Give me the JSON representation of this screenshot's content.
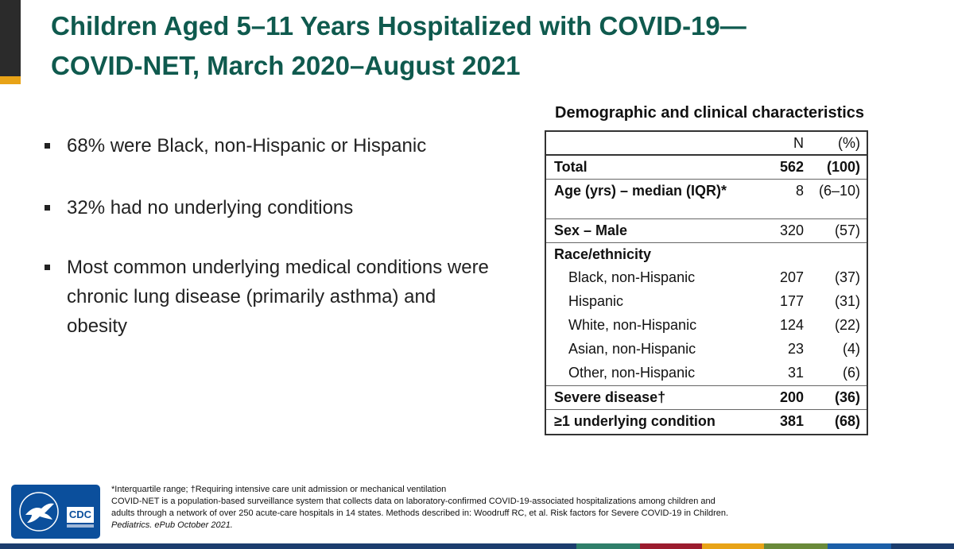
{
  "title": {
    "line1": "Children Aged 5–11 Years Hospitalized with COVID-19—",
    "line2": "COVID-NET, March 2020–August 2021"
  },
  "bullets": [
    "68% were Black, non-Hispanic or Hispanic",
    "32% had no underlying conditions",
    "Most common underlying medical conditions were chronic lung disease (primarily asthma) and obesity"
  ],
  "table": {
    "caption": "Demographic and clinical characteristics",
    "headers": [
      "",
      "N",
      "(%)"
    ],
    "rows": [
      {
        "label": "Total",
        "n": "562",
        "pct": "(100)"
      },
      {
        "label": "Age (yrs) – median (IQR)*",
        "n": "8",
        "pct": "(6–10)"
      },
      {
        "label": "Sex – Male",
        "n": "320",
        "pct": "(57)"
      },
      {
        "label": "Race/ethnicity",
        "n": "",
        "pct": ""
      },
      {
        "label": "Black, non-Hispanic",
        "n": "207",
        "pct": "(37)"
      },
      {
        "label": "Hispanic",
        "n": "177",
        "pct": "(31)"
      },
      {
        "label": "White, non-Hispanic",
        "n": "124",
        "pct": "(22)"
      },
      {
        "label": "Asian, non-Hispanic",
        "n": "23",
        "pct": "(4)"
      },
      {
        "label": "Other, non-Hispanic",
        "n": "31",
        "pct": "(6)"
      },
      {
        "label": "Severe disease†",
        "n": "200",
        "pct": "(36)"
      },
      {
        "label": "≥1 underlying condition",
        "n": "381",
        "pct": "(68)"
      }
    ]
  },
  "footnotes": {
    "line1": "*Interquartile range; †Requiring intensive care unit admission or mechanical ventilation",
    "line2": "COVID-NET is a population-based surveillance system that collects data on laboratory-confirmed COVID-19-associated hospitalizations among children and",
    "line3": "adults through a network of over 250 acute-care hospitals in 14 states. Methods described in: Woodruff RC, et al. Risk factors for Severe COVID-19 in Children.",
    "line4": "Pediatrics. ePub October 2021."
  },
  "logo": {
    "text": "CDC"
  },
  "colors": {
    "title": "#0f5a4e",
    "accent_gold": "#e8a317",
    "logo_blue": "#0b4f9c",
    "bottom_bar": "#1c3d6e"
  }
}
